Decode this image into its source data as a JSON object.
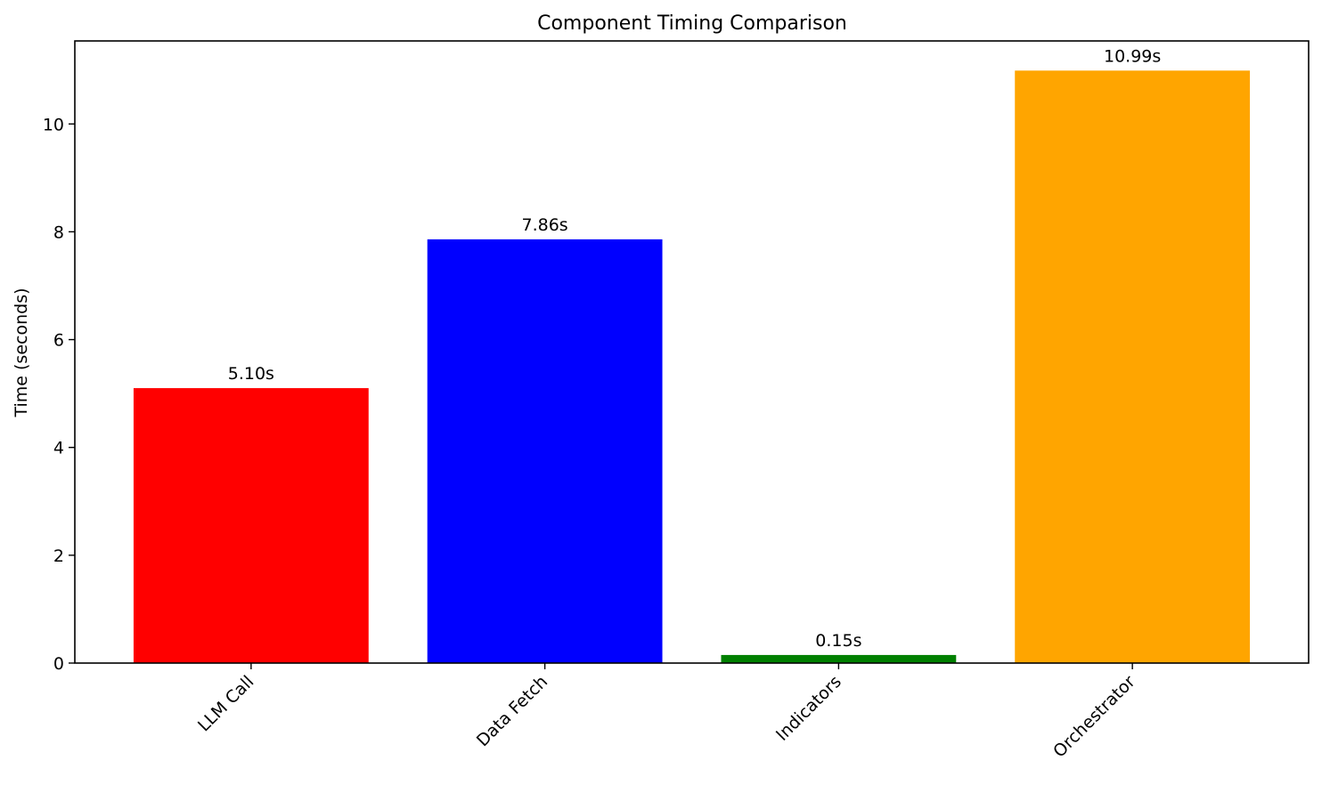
{
  "chart_data": {
    "type": "bar",
    "title": "Component Timing Comparison",
    "xlabel": "",
    "ylabel": "Time (seconds)",
    "categories": [
      "LLM Call",
      "Data Fetch",
      "Indicators",
      "Orchestrator"
    ],
    "values": [
      5.1,
      7.86,
      0.15,
      10.99
    ],
    "value_labels": [
      "5.10s",
      "7.86s",
      "0.15s",
      "10.99s"
    ],
    "colors": [
      "#ff0000",
      "#0000ff",
      "#008000",
      "#ffa500"
    ],
    "ylim": [
      0,
      11.54
    ],
    "yticks": [
      0,
      2,
      4,
      6,
      8,
      10
    ],
    "ytick_labels": [
      "0",
      "2",
      "4",
      "6",
      "8",
      "10"
    ],
    "grid": false,
    "legend": "none"
  }
}
